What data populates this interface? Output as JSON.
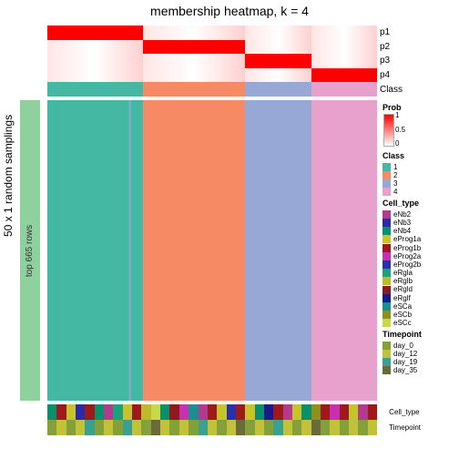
{
  "title": "membership heatmap, k = 4",
  "ylabel": "50 x 1 random samplings",
  "rowbar": {
    "color": "#8fd19e",
    "label": "top 665 rows"
  },
  "prob_colormap": {
    "low": "#ffffff",
    "high": "#ff0000"
  },
  "top_anno_labels": [
    "p1",
    "p2",
    "p3",
    "p4",
    "Class"
  ],
  "class_colors": {
    "1": "#44b8a3",
    "2": "#f58a65",
    "3": "#98a8d6",
    "4": "#e8a0cc"
  },
  "column_blocks": [
    {
      "class": "1",
      "width": 0.29,
      "p_high": "p1",
      "main_color": "#44b8a3"
    },
    {
      "class": "2",
      "width": 0.31,
      "p_high": "p2",
      "main_color": "#f58a65"
    },
    {
      "class": "3",
      "width": 0.2,
      "p_high": "p3",
      "main_color": "#98a8d6"
    },
    {
      "class": "4",
      "width": 0.2,
      "p_high": "p4",
      "main_color": "#e8a0cc"
    }
  ],
  "cell_type": {
    "title": "Cell_type",
    "items": [
      {
        "l": "eNb2",
        "c": "#b23b8f"
      },
      {
        "l": "eNb3",
        "c": "#2b2aa8"
      },
      {
        "l": "eNb4",
        "c": "#0a8f6b"
      },
      {
        "l": "eProg1a",
        "c": "#c7c42a"
      },
      {
        "l": "eProg1b",
        "c": "#9e1a1a"
      },
      {
        "l": "eProg2a",
        "c": "#c92fb0"
      },
      {
        "l": "eProg2b",
        "c": "#2a2fb0"
      },
      {
        "l": "eRgla",
        "c": "#1aa37a"
      },
      {
        "l": "eRglb",
        "c": "#bdbb2c"
      },
      {
        "l": "eRgld",
        "c": "#8f1a1a"
      },
      {
        "l": "eRglf",
        "c": "#1a1a8f"
      },
      {
        "l": "eSCa",
        "c": "#1a8f8f"
      },
      {
        "l": "eSCb",
        "c": "#8f8f1a"
      },
      {
        "l": "eSCc",
        "c": "#c7d84a"
      }
    ]
  },
  "timepoint": {
    "title": "Timepoint",
    "items": [
      {
        "l": "day_0",
        "c": "#84a03a"
      },
      {
        "l": "day_12",
        "c": "#c2c23a"
      },
      {
        "l": "day_19",
        "c": "#3aa08f"
      },
      {
        "l": "day_35",
        "c": "#6a6a3a"
      }
    ]
  },
  "bot_right_labels": [
    "Cell_type",
    "Timepoint"
  ],
  "bottom_celltype_seq": [
    "#0a8f6b",
    "#9e1a1a",
    "#c7c42a",
    "#2b2aa8",
    "#9e1a1a",
    "#0a8f6b",
    "#b23b8f",
    "#1aa37a",
    "#c7c42a",
    "#9e1a1a",
    "#bdbb2c",
    "#c7d84a",
    "#0a8f6b",
    "#8f1a1a",
    "#c92fb0",
    "#1a8f8f",
    "#b23b8f",
    "#9e1a1a",
    "#c7c42a",
    "#2a2fb0",
    "#9e1a1a",
    "#c7c42a",
    "#0a8f6b",
    "#1a1a8f",
    "#9e1a1a",
    "#b23b8f",
    "#c7c42a",
    "#0a8f6b",
    "#8f8f1a",
    "#9e1a1a",
    "#c92fb0",
    "#9e1a1a",
    "#c7c42a",
    "#b23b8f",
    "#9e1a1a"
  ],
  "bottom_timepoint_seq": [
    "#84a03a",
    "#c2c23a",
    "#84a03a",
    "#c2c23a",
    "#3aa08f",
    "#84a03a",
    "#c2c23a",
    "#84a03a",
    "#3aa08f",
    "#c2c23a",
    "#84a03a",
    "#6a6a3a",
    "#c2c23a",
    "#84a03a",
    "#c2c23a",
    "#84a03a",
    "#3aa08f",
    "#c2c23a",
    "#84a03a",
    "#c2c23a",
    "#6a6a3a",
    "#84a03a",
    "#c2c23a",
    "#84a03a",
    "#3aa08f",
    "#c2c23a",
    "#84a03a",
    "#c2c23a",
    "#6a6a3a",
    "#84a03a",
    "#c2c23a",
    "#84a03a",
    "#c2c23a",
    "#84a03a",
    "#c2c23a"
  ],
  "prob_legend": {
    "title": "Prob",
    "ticks": [
      "1",
      "0.5",
      "0"
    ]
  },
  "fontsize_title": 14,
  "fontsize_label": 12,
  "fontsize_small": 8
}
